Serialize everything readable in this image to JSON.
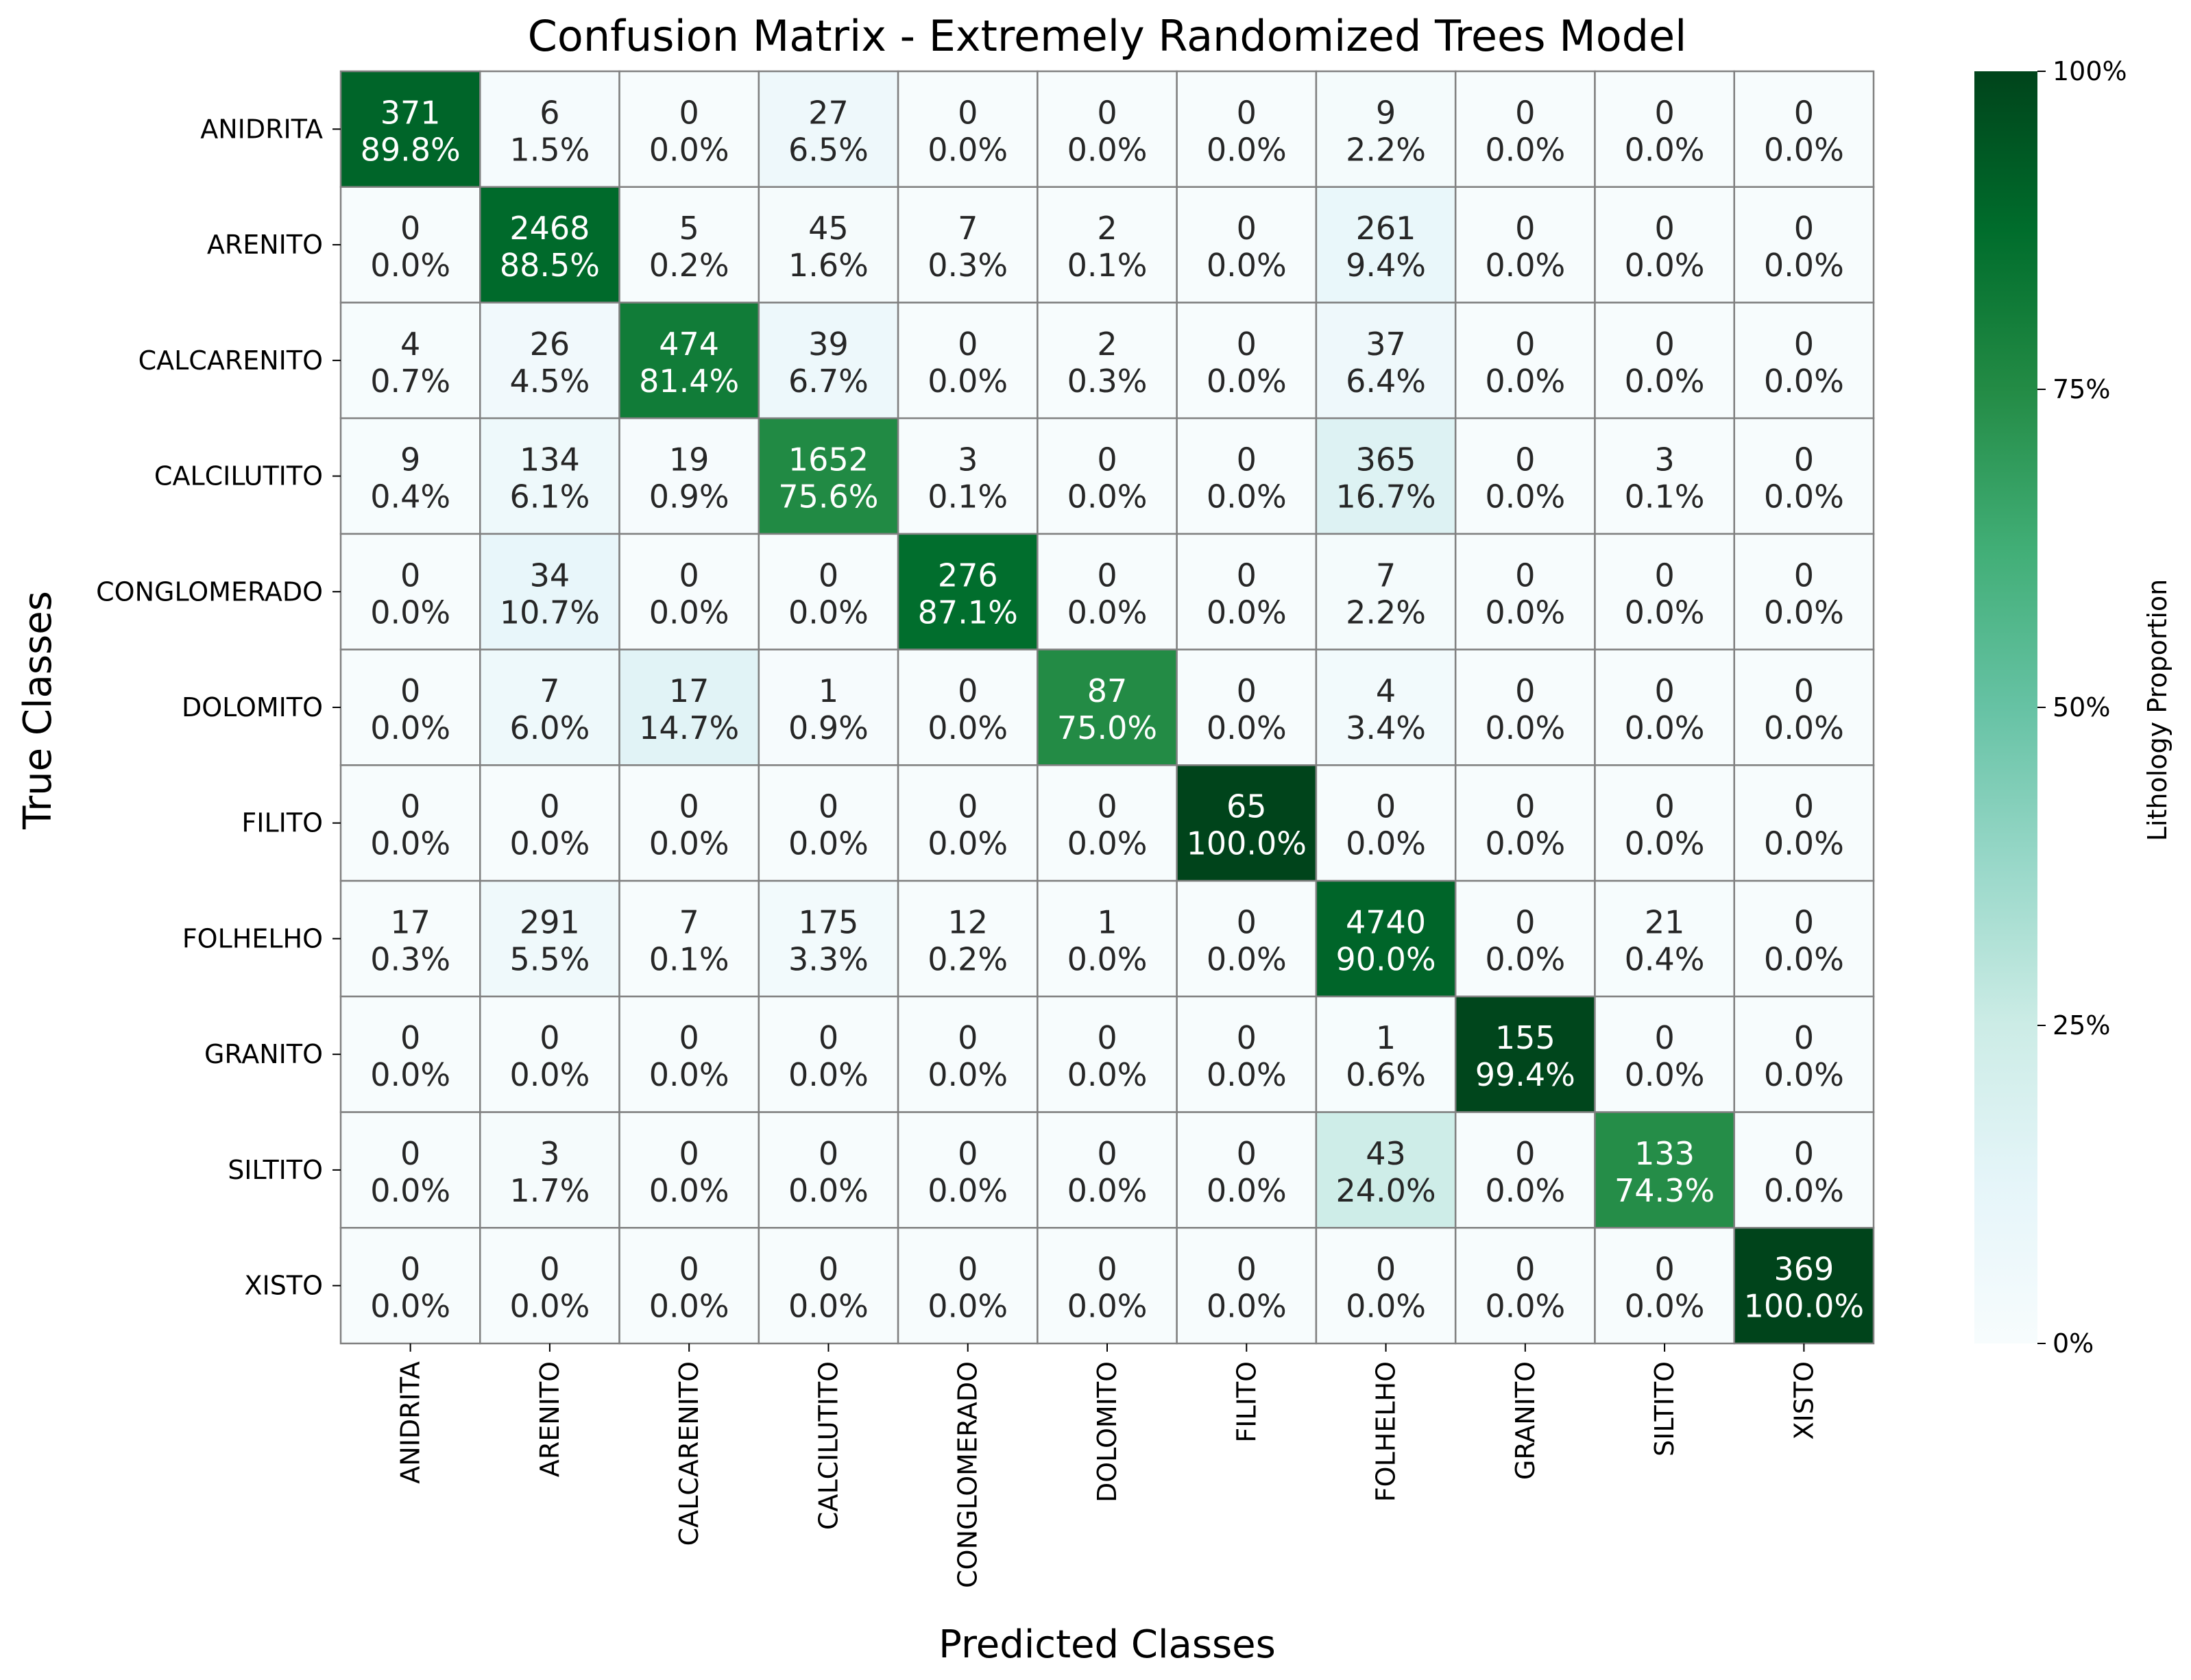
{
  "chart_data": {
    "type": "heatmap",
    "title": "Confusion Matrix - Extremely Randomized Trees Model",
    "xlabel": "Predicted Classes",
    "ylabel": "True Classes",
    "rows": [
      "ANIDRITA",
      "ARENITO",
      "CALCARENITO",
      "CALCILUTITO",
      "CONGLOMERADO",
      "DOLOMITO",
      "FILITO",
      "FOLHELHO",
      "GRANITO",
      "SILTITO",
      "XISTO"
    ],
    "columns": [
      "ANIDRITA",
      "ARENITO",
      "CALCARENITO",
      "CALCILUTITO",
      "CONGLOMERADO",
      "DOLOMITO",
      "FILITO",
      "FOLHELHO",
      "GRANITO",
      "SILTITO",
      "XISTO"
    ],
    "counts": [
      [
        371,
        6,
        0,
        27,
        0,
        0,
        0,
        9,
        0,
        0,
        0
      ],
      [
        0,
        2468,
        5,
        45,
        7,
        2,
        0,
        261,
        0,
        0,
        0
      ],
      [
        4,
        26,
        474,
        39,
        0,
        2,
        0,
        37,
        0,
        0,
        0
      ],
      [
        9,
        134,
        19,
        1652,
        3,
        0,
        0,
        365,
        0,
        3,
        0
      ],
      [
        0,
        34,
        0,
        0,
        276,
        0,
        0,
        7,
        0,
        0,
        0
      ],
      [
        0,
        7,
        17,
        1,
        0,
        87,
        0,
        4,
        0,
        0,
        0
      ],
      [
        0,
        0,
        0,
        0,
        0,
        0,
        65,
        0,
        0,
        0,
        0
      ],
      [
        17,
        291,
        7,
        175,
        12,
        1,
        0,
        4740,
        0,
        21,
        0
      ],
      [
        0,
        0,
        0,
        0,
        0,
        0,
        0,
        1,
        155,
        0,
        0
      ],
      [
        0,
        3,
        0,
        0,
        0,
        0,
        0,
        43,
        0,
        133,
        0
      ],
      [
        0,
        0,
        0,
        0,
        0,
        0,
        0,
        0,
        0,
        0,
        369
      ]
    ],
    "percentages": [
      [
        "89.8%",
        "1.5%",
        "0.0%",
        "6.5%",
        "0.0%",
        "0.0%",
        "0.0%",
        "2.2%",
        "0.0%",
        "0.0%",
        "0.0%"
      ],
      [
        "0.0%",
        "88.5%",
        "0.2%",
        "1.6%",
        "0.3%",
        "0.1%",
        "0.0%",
        "9.4%",
        "0.0%",
        "0.0%",
        "0.0%"
      ],
      [
        "0.7%",
        "4.5%",
        "81.4%",
        "6.7%",
        "0.0%",
        "0.3%",
        "0.0%",
        "6.4%",
        "0.0%",
        "0.0%",
        "0.0%"
      ],
      [
        "0.4%",
        "6.1%",
        "0.9%",
        "75.6%",
        "0.1%",
        "0.0%",
        "0.0%",
        "16.7%",
        "0.0%",
        "0.1%",
        "0.0%"
      ],
      [
        "0.0%",
        "10.7%",
        "0.0%",
        "0.0%",
        "87.1%",
        "0.0%",
        "0.0%",
        "2.2%",
        "0.0%",
        "0.0%",
        "0.0%"
      ],
      [
        "0.0%",
        "6.0%",
        "14.7%",
        "0.9%",
        "0.0%",
        "75.0%",
        "0.0%",
        "3.4%",
        "0.0%",
        "0.0%",
        "0.0%"
      ],
      [
        "0.0%",
        "0.0%",
        "0.0%",
        "0.0%",
        "0.0%",
        "0.0%",
        "100.0%",
        "0.0%",
        "0.0%",
        "0.0%",
        "0.0%"
      ],
      [
        "0.3%",
        "5.5%",
        "0.1%",
        "3.3%",
        "0.2%",
        "0.0%",
        "0.0%",
        "90.0%",
        "0.0%",
        "0.4%",
        "0.0%"
      ],
      [
        "0.0%",
        "0.0%",
        "0.0%",
        "0.0%",
        "0.0%",
        "0.0%",
        "0.0%",
        "0.6%",
        "99.4%",
        "0.0%",
        "0.0%"
      ],
      [
        "0.0%",
        "1.7%",
        "0.0%",
        "0.0%",
        "0.0%",
        "0.0%",
        "0.0%",
        "24.0%",
        "0.0%",
        "74.3%",
        "0.0%"
      ],
      [
        "0.0%",
        "0.0%",
        "0.0%",
        "0.0%",
        "0.0%",
        "0.0%",
        "0.0%",
        "0.0%",
        "0.0%",
        "0.0%",
        "100.0%"
      ]
    ],
    "colorbar": {
      "label": "Lithology Proportion",
      "ticks": [
        "0%",
        "25%",
        "50%",
        "75%",
        "100%"
      ],
      "range": [
        0,
        1
      ],
      "colormap": "BuGn",
      "colors": [
        "#f7fcfd",
        "#e5f5f9",
        "#ccece6",
        "#99d8c9",
        "#66c2a4",
        "#41ae76",
        "#238b45",
        "#006d2c",
        "#00441b"
      ]
    },
    "cell_border_color": "#808080",
    "text_color_dark": "#262626",
    "text_color_light": "#ffffff"
  }
}
